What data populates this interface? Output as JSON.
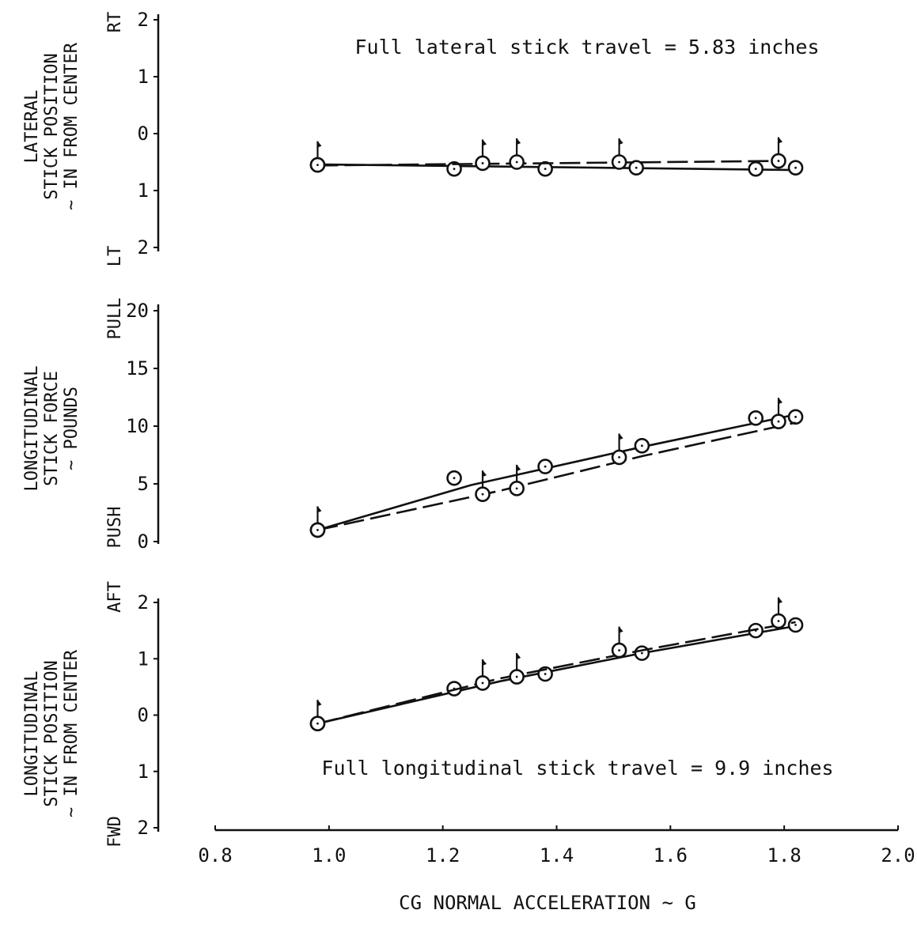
{
  "chart_data": [
    {
      "type": "scatter",
      "ylabel_lines": [
        "LATERAL",
        "STICK POSITION",
        "~ IN FROM CENTER"
      ],
      "direction_top": "RT",
      "direction_bottom": "LT",
      "annotation": "Full lateral stick travel = 5.83 inches",
      "yticks": [
        {
          "value": 2,
          "label": "2"
        },
        {
          "value": 1,
          "label": "1"
        },
        {
          "value": 0,
          "label": "0"
        },
        {
          "value": -1,
          "label": "1"
        },
        {
          "value": -2,
          "label": "2"
        }
      ],
      "ylim": [
        -2,
        2
      ],
      "xlim": [
        0.8,
        2.0
      ],
      "series": [
        {
          "style": "solid",
          "flagged": false,
          "points": [
            [
              0.98,
              -0.55
            ],
            [
              1.22,
              -0.62
            ],
            [
              1.38,
              -0.62
            ],
            [
              1.54,
              -0.6
            ],
            [
              1.75,
              -0.62
            ],
            [
              1.82,
              -0.6
            ]
          ],
          "fit": [
            [
              0.98,
              -0.54
            ],
            [
              1.82,
              -0.64
            ]
          ]
        },
        {
          "style": "dashed",
          "flagged": true,
          "points": [
            [
              0.98,
              -0.55
            ],
            [
              1.27,
              -0.52
            ],
            [
              1.33,
              -0.5
            ],
            [
              1.51,
              -0.5
            ],
            [
              1.79,
              -0.48
            ]
          ],
          "fit": [
            [
              0.98,
              -0.56
            ],
            [
              1.79,
              -0.48
            ]
          ]
        }
      ]
    },
    {
      "type": "scatter",
      "ylabel_lines": [
        "LONGITUDINAL",
        "STICK FORCE",
        "~ POUNDS"
      ],
      "direction_top": "PULL",
      "direction_bottom": "PUSH",
      "annotation": "",
      "yticks": [
        {
          "value": 20,
          "label": "20"
        },
        {
          "value": 15,
          "label": "15"
        },
        {
          "value": 10,
          "label": "10"
        },
        {
          "value": 5,
          "label": "5"
        },
        {
          "value": 0,
          "label": "0"
        }
      ],
      "ylim": [
        0,
        20
      ],
      "xlim": [
        0.8,
        2.0
      ],
      "series": [
        {
          "style": "solid",
          "flagged": false,
          "points": [
            [
              0.98,
              1.0
            ],
            [
              1.22,
              5.5
            ],
            [
              1.38,
              6.5
            ],
            [
              1.55,
              8.3
            ],
            [
              1.75,
              10.7
            ],
            [
              1.82,
              10.8
            ]
          ],
          "fit": [
            [
              0.98,
              1.0
            ],
            [
              1.25,
              4.9
            ],
            [
              1.55,
              8.2
            ],
            [
              1.82,
              11.0
            ]
          ]
        },
        {
          "style": "dashed",
          "flagged": true,
          "points": [
            [
              0.98,
              1.0
            ],
            [
              1.27,
              4.1
            ],
            [
              1.33,
              4.6
            ],
            [
              1.51,
              7.3
            ],
            [
              1.79,
              10.4
            ]
          ],
          "fit": [
            [
              0.98,
              1.0
            ],
            [
              1.3,
              4.4
            ],
            [
              1.55,
              7.4
            ],
            [
              1.82,
              10.3
            ]
          ]
        }
      ]
    },
    {
      "type": "scatter",
      "ylabel_lines": [
        "LONGITUDINAL",
        "STICK POSITION",
        "~ IN FROM CENTER"
      ],
      "direction_top": "AFT",
      "direction_bottom": "FWD",
      "annotation": "Full longitudinal stick travel = 9.9 inches",
      "yticks": [
        {
          "value": 2,
          "label": "2"
        },
        {
          "value": 1,
          "label": "1"
        },
        {
          "value": 0,
          "label": "0"
        },
        {
          "value": -1,
          "label": "1"
        },
        {
          "value": -2,
          "label": "2"
        }
      ],
      "ylim": [
        -2,
        2
      ],
      "xlim": [
        0.8,
        2.0
      ],
      "series": [
        {
          "style": "solid",
          "flagged": false,
          "points": [
            [
              0.98,
              -0.15
            ],
            [
              1.22,
              0.47
            ],
            [
              1.38,
              0.73
            ],
            [
              1.55,
              1.1
            ],
            [
              1.75,
              1.5
            ],
            [
              1.82,
              1.6
            ]
          ],
          "fit": [
            [
              0.98,
              -0.15
            ],
            [
              1.3,
              0.6
            ],
            [
              1.55,
              1.1
            ],
            [
              1.82,
              1.58
            ]
          ]
        },
        {
          "style": "dashed",
          "flagged": true,
          "points": [
            [
              0.98,
              -0.15
            ],
            [
              1.27,
              0.57
            ],
            [
              1.33,
              0.68
            ],
            [
              1.51,
              1.15
            ],
            [
              1.79,
              1.67
            ]
          ],
          "fit": [
            [
              0.98,
              -0.15
            ],
            [
              1.3,
              0.65
            ],
            [
              1.55,
              1.15
            ],
            [
              1.82,
              1.65
            ]
          ]
        }
      ]
    }
  ],
  "x_axis": {
    "xlabel": "CG NORMAL ACCELERATION ~ G",
    "ticks": [
      {
        "value": 0.8,
        "label": "0.8"
      },
      {
        "value": 1.0,
        "label": "1.0"
      },
      {
        "value": 1.2,
        "label": "1.2"
      },
      {
        "value": 1.4,
        "label": "1.4"
      },
      {
        "value": 1.6,
        "label": "1.6"
      },
      {
        "value": 1.8,
        "label": "1.8"
      },
      {
        "value": 2.0,
        "label": "2.0"
      }
    ]
  }
}
